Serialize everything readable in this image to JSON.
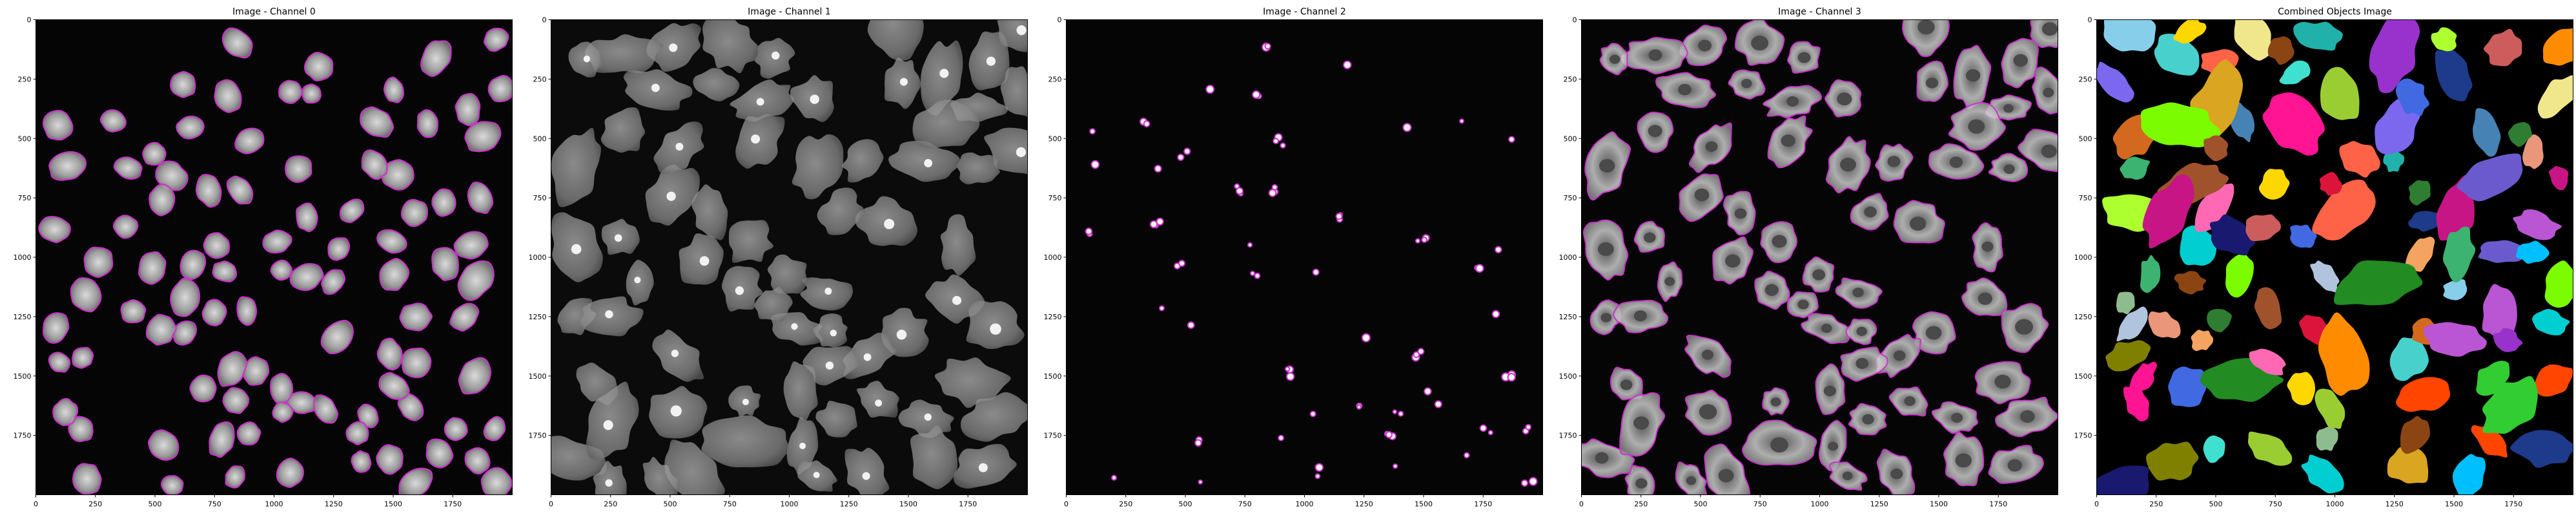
{
  "figure": {
    "background": "#ffffff"
  },
  "chart_data": [
    {
      "type": "heatmap",
      "title": "Image - Channel 0",
      "xlim": [
        0,
        2000
      ],
      "ylim": [
        2000,
        0
      ],
      "xticks": [
        0,
        250,
        500,
        750,
        1000,
        1250,
        1500,
        1750
      ],
      "yticks": [
        0,
        250,
        500,
        750,
        1000,
        1250,
        1500,
        1750
      ],
      "colormap": "gray",
      "overlay_color": "#cc33cc",
      "grid": false
    },
    {
      "type": "heatmap",
      "title": "Image - Channel 1",
      "xlim": [
        0,
        2000
      ],
      "ylim": [
        2000,
        0
      ],
      "xticks": [
        0,
        250,
        500,
        750,
        1000,
        1250,
        1500,
        1750
      ],
      "yticks": [
        0,
        250,
        500,
        750,
        1000,
        1250,
        1500,
        1750
      ],
      "colormap": "gray",
      "grid": false
    },
    {
      "type": "heatmap",
      "title": "Image - Channel 2",
      "xlim": [
        0,
        2000
      ],
      "ylim": [
        2000,
        0
      ],
      "xticks": [
        0,
        250,
        500,
        750,
        1000,
        1250,
        1500,
        1750
      ],
      "yticks": [
        0,
        250,
        500,
        750,
        1000,
        1250,
        1500,
        1750
      ],
      "colormap": "gray",
      "overlay_color": "#cc33cc",
      "grid": false
    },
    {
      "type": "heatmap",
      "title": "Image - Channel 3",
      "xlim": [
        0,
        2000
      ],
      "ylim": [
        2000,
        0
      ],
      "xticks": [
        0,
        250,
        500,
        750,
        1000,
        1250,
        1500,
        1750
      ],
      "yticks": [
        0,
        250,
        500,
        750,
        1000,
        1250,
        1500,
        1750
      ],
      "colormap": "gray",
      "overlay_color": "#cc33cc",
      "grid": false
    },
    {
      "type": "heatmap",
      "title": "Combined Objects Image",
      "xlim": [
        0,
        2000
      ],
      "ylim": [
        2000,
        0
      ],
      "xticks": [
        0,
        250,
        500,
        750,
        1000,
        1250,
        1500,
        1750
      ],
      "yticks": [
        0,
        250,
        500,
        750,
        1000,
        1250,
        1500,
        1750
      ],
      "colormap": "label",
      "grid": false
    }
  ]
}
